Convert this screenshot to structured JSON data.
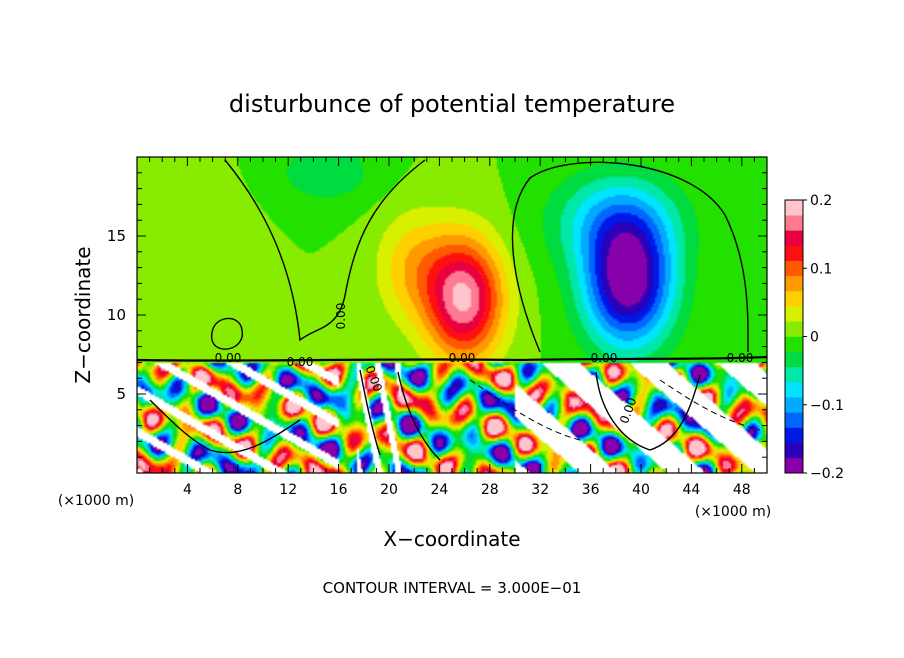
{
  "chart_data": {
    "type": "heatmap",
    "title": "disturbunce of potential temperature",
    "xlabel": "X−coordinate",
    "ylabel": "Z−coordinate",
    "x_unit": "(×1000 m)",
    "x_unit_right": "(×1000 m)",
    "xlim": [
      0,
      50
    ],
    "ylim": [
      0,
      20
    ],
    "x_ticks": [
      4,
      8,
      12,
      16,
      20,
      24,
      28,
      32,
      36,
      40,
      44,
      48
    ],
    "y_ticks": [
      5,
      10,
      15
    ],
    "colorbar": {
      "range": [
        -0.2,
        0.2
      ],
      "tick_values": [
        0.2,
        0.1,
        0,
        -0.1,
        -0.2
      ],
      "tick_labels": [
        "0.2",
        "0.1",
        "0",
        "−0.1",
        "−0.2"
      ],
      "colors": [
        "#8800aa",
        "#2a00b8",
        "#0018e6",
        "#0066ff",
        "#00aaff",
        "#00e4ff",
        "#00e8a8",
        "#00dc40",
        "#22e000",
        "#88ec00",
        "#d8f000",
        "#ffd000",
        "#ff9900",
        "#ff5a00",
        "#ff1010",
        "#e80040",
        "#ff7a90",
        "#ffc4cc"
      ]
    },
    "contour_labels": [
      "0.00",
      "0.00",
      "0.00",
      "0.00",
      "0.00",
      "0.00",
      "0.00",
      "0.00"
    ],
    "footer": "CONTOUR INTERVAL =  3.000E−01",
    "features": [
      {
        "x": 26,
        "z": 11,
        "value": 0.18,
        "sx": 3.0,
        "sz": 3.8
      },
      {
        "x": 22,
        "z": 13,
        "value": 0.06,
        "sx": 3.0,
        "sz": 3.5
      },
      {
        "x": 39,
        "z": 12,
        "value": -0.2,
        "sx": 3.5,
        "sz": 4.0
      },
      {
        "x": 38,
        "z": 16,
        "value": -0.08,
        "sx": 5.0,
        "sz": 3.0
      },
      {
        "x": 15,
        "z": 19,
        "value": -0.04,
        "sx": 4.0,
        "sz": 2.0
      },
      {
        "x": 6,
        "z": 14,
        "value": 0.02,
        "sx": 3.0,
        "sz": 4.0
      }
    ]
  }
}
